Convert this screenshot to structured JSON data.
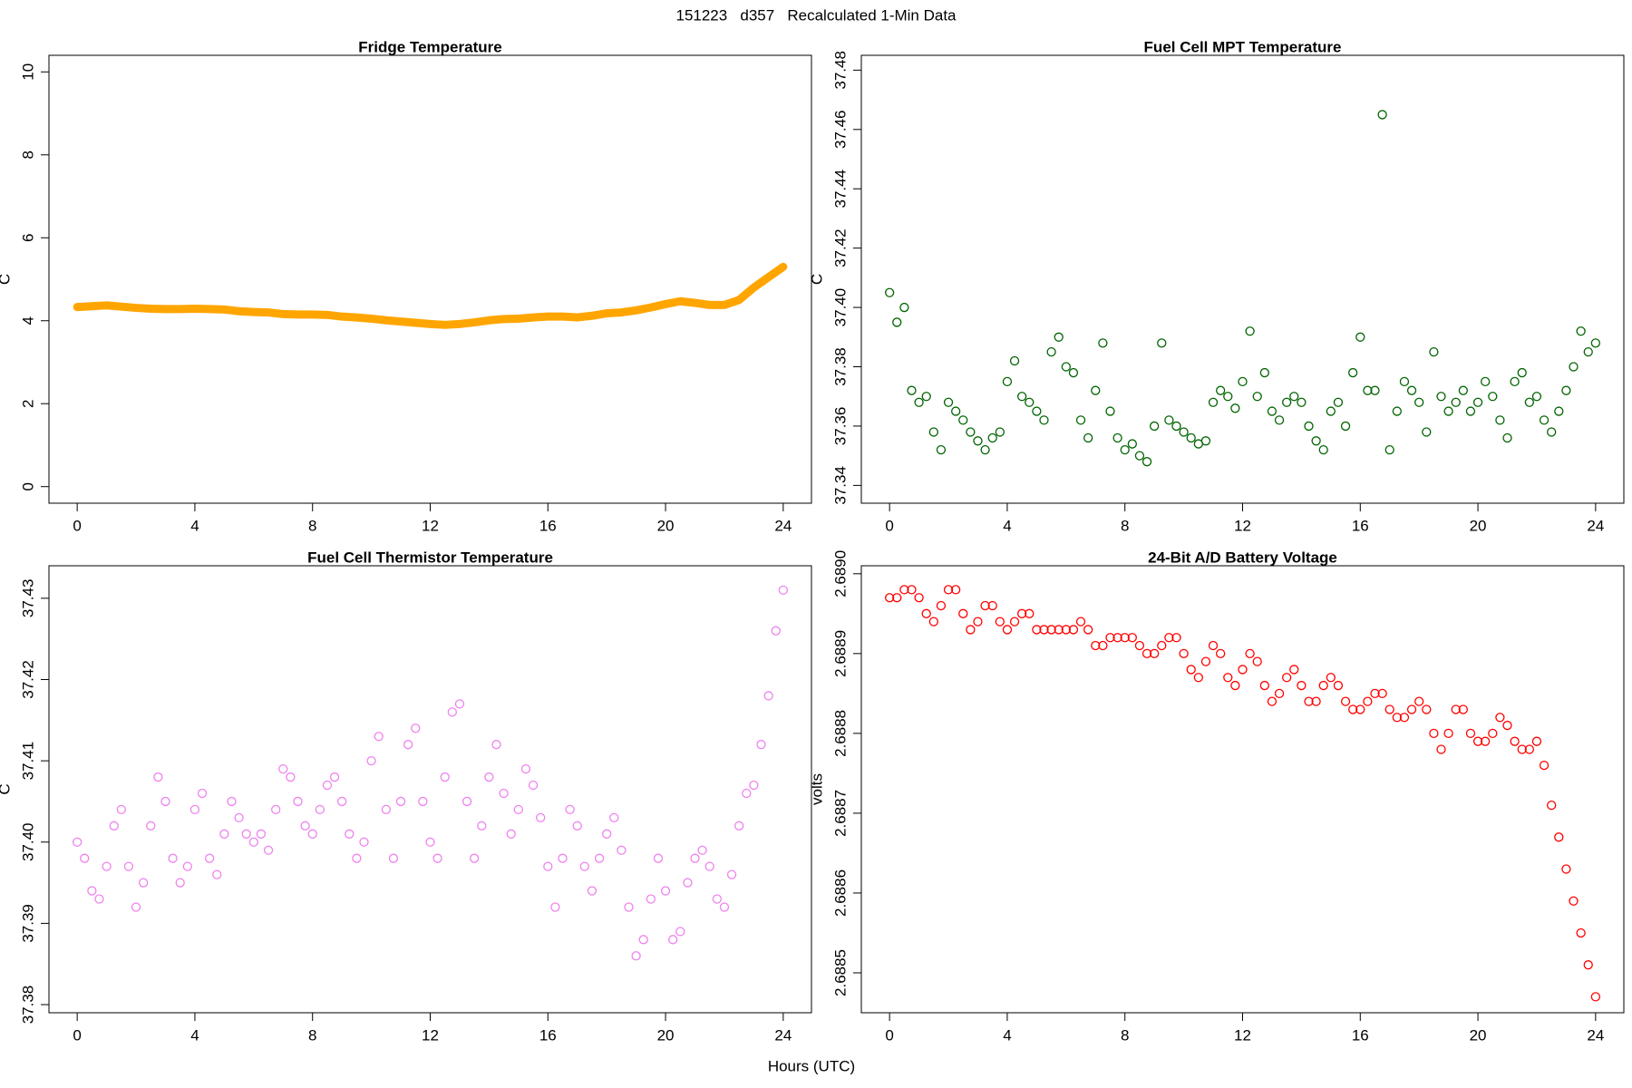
{
  "title": "151223   d357   Recalculated 1-Min Data",
  "x_label": "Hours (UTC)",
  "chart_data": [
    {
      "type": "line",
      "title": "Fridge Temperature",
      "y_label": "C",
      "color": "#ffa500",
      "x": [
        0,
        0.5,
        1,
        1.5,
        2,
        2.5,
        3,
        3.5,
        4,
        4.5,
        5,
        5.5,
        6,
        6.5,
        7,
        7.5,
        8,
        8.5,
        9,
        9.5,
        10,
        10.5,
        11,
        11.5,
        12,
        12.5,
        13,
        13.5,
        14,
        14.5,
        15,
        15.5,
        16,
        16.5,
        17,
        17.5,
        18,
        18.5,
        19,
        19.5,
        20,
        20.5,
        21,
        21.5,
        22,
        22.5,
        23,
        23.5,
        24
      ],
      "values": [
        4.33,
        4.35,
        4.37,
        4.34,
        4.31,
        4.29,
        4.28,
        4.28,
        4.29,
        4.28,
        4.27,
        4.23,
        4.21,
        4.2,
        4.16,
        4.15,
        4.15,
        4.14,
        4.1,
        4.08,
        4.05,
        4.01,
        3.98,
        3.95,
        3.92,
        3.9,
        3.92,
        3.96,
        4.01,
        4.04,
        4.05,
        4.08,
        4.1,
        4.1,
        4.08,
        4.12,
        4.18,
        4.2,
        4.25,
        4.32,
        4.4,
        4.47,
        4.43,
        4.38,
        4.38,
        4.5,
        4.8,
        5.05,
        5.3
      ],
      "xlim": [
        -0.96,
        24.96
      ],
      "xticks": [
        0,
        4,
        8,
        12,
        16,
        20,
        24
      ],
      "ylim": [
        -0.4,
        10.4
      ],
      "yticks": [
        0,
        2,
        4,
        6,
        8,
        10
      ]
    },
    {
      "type": "scatter",
      "title": "Fuel Cell MPT Temperature",
      "y_label": "C",
      "color": "#006400",
      "x": [
        0,
        0.25,
        0.5,
        0.75,
        1,
        1.25,
        1.5,
        1.75,
        2,
        2.25,
        2.5,
        2.75,
        3,
        3.25,
        3.5,
        3.75,
        4,
        4.25,
        4.5,
        4.75,
        5,
        5.25,
        5.5,
        5.75,
        6,
        6.25,
        6.5,
        6.75,
        7,
        7.25,
        7.5,
        7.75,
        8,
        8.25,
        8.5,
        8.75,
        9,
        9.25,
        9.5,
        9.75,
        10,
        10.25,
        10.5,
        10.75,
        11,
        11.25,
        11.5,
        11.75,
        12,
        12.25,
        12.5,
        12.75,
        13,
        13.25,
        13.5,
        13.75,
        14,
        14.25,
        14.5,
        14.75,
        15,
        15.25,
        15.5,
        15.75,
        16,
        16.25,
        16.5,
        16.75,
        17,
        17.25,
        17.5,
        17.75,
        18,
        18.25,
        18.5,
        18.75,
        19,
        19.25,
        19.5,
        19.75,
        20,
        20.25,
        20.5,
        20.75,
        21,
        21.25,
        21.5,
        21.75,
        22,
        22.25,
        22.5,
        22.75,
        23,
        23.25,
        23.5,
        23.75,
        24
      ],
      "values": [
        37.405,
        37.395,
        37.4,
        37.372,
        37.368,
        37.37,
        37.358,
        37.352,
        37.368,
        37.365,
        37.362,
        37.358,
        37.355,
        37.352,
        37.356,
        37.358,
        37.375,
        37.382,
        37.37,
        37.368,
        37.365,
        37.362,
        37.385,
        37.39,
        37.38,
        37.378,
        37.362,
        37.356,
        37.372,
        37.388,
        37.365,
        37.356,
        37.352,
        37.354,
        37.35,
        37.348,
        37.36,
        37.388,
        37.362,
        37.36,
        37.358,
        37.356,
        37.354,
        37.355,
        37.368,
        37.372,
        37.37,
        37.366,
        37.375,
        37.392,
        37.37,
        37.378,
        37.365,
        37.362,
        37.368,
        37.37,
        37.368,
        37.36,
        37.355,
        37.352,
        37.365,
        37.368,
        37.36,
        37.378,
        37.39,
        37.372,
        37.372,
        37.465,
        37.352,
        37.365,
        37.375,
        37.372,
        37.368,
        37.358,
        37.385,
        37.37,
        37.365,
        37.368,
        37.372,
        37.365,
        37.368,
        37.375,
        37.37,
        37.362,
        37.356,
        37.375,
        37.378,
        37.368,
        37.37,
        37.362,
        37.358,
        37.365,
        37.372,
        37.38,
        37.392,
        37.385,
        37.388
      ],
      "xlim": [
        -0.96,
        24.96
      ],
      "xticks": [
        0,
        4,
        8,
        12,
        16,
        20,
        24
      ],
      "ylim": [
        37.334,
        37.485
      ],
      "yticks": [
        37.34,
        37.36,
        37.38,
        {
          "value": 37.4,
          "label": "37.40"
        },
        37.42,
        37.44,
        37.46,
        37.48
      ]
    },
    {
      "type": "scatter",
      "title": "Fuel Cell Thermistor Temperature",
      "y_label": "C",
      "color": "#ee82ee",
      "x": [
        0,
        0.25,
        0.5,
        0.75,
        1,
        1.25,
        1.5,
        1.75,
        2,
        2.25,
        2.5,
        2.75,
        3,
        3.25,
        3.5,
        3.75,
        4,
        4.25,
        4.5,
        4.75,
        5,
        5.25,
        5.5,
        5.75,
        6,
        6.25,
        6.5,
        6.75,
        7,
        7.25,
        7.5,
        7.75,
        8,
        8.25,
        8.5,
        8.75,
        9,
        9.25,
        9.5,
        9.75,
        10,
        10.25,
        10.5,
        10.75,
        11,
        11.25,
        11.5,
        11.75,
        12,
        12.25,
        12.5,
        12.75,
        13,
        13.25,
        13.5,
        13.75,
        14,
        14.25,
        14.5,
        14.75,
        15,
        15.25,
        15.5,
        15.75,
        16,
        16.25,
        16.5,
        16.75,
        17,
        17.25,
        17.5,
        17.75,
        18,
        18.25,
        18.5,
        18.75,
        19,
        19.25,
        19.5,
        19.75,
        20,
        20.25,
        20.5,
        20.75,
        21,
        21.25,
        21.5,
        21.75,
        22,
        22.25,
        22.5,
        22.75,
        23,
        23.25,
        23.5,
        23.75,
        24
      ],
      "values": [
        37.4,
        37.398,
        37.394,
        37.393,
        37.397,
        37.402,
        37.404,
        37.397,
        37.392,
        37.395,
        37.402,
        37.408,
        37.405,
        37.398,
        37.395,
        37.397,
        37.404,
        37.406,
        37.398,
        37.396,
        37.401,
        37.405,
        37.403,
        37.401,
        37.4,
        37.401,
        37.399,
        37.404,
        37.409,
        37.408,
        37.405,
        37.402,
        37.401,
        37.404,
        37.407,
        37.408,
        37.405,
        37.401,
        37.398,
        37.4,
        37.41,
        37.413,
        37.404,
        37.398,
        37.405,
        37.412,
        37.414,
        37.405,
        37.4,
        37.398,
        37.408,
        37.416,
        37.417,
        37.405,
        37.398,
        37.402,
        37.408,
        37.412,
        37.406,
        37.401,
        37.404,
        37.409,
        37.407,
        37.403,
        37.397,
        37.392,
        37.398,
        37.404,
        37.402,
        37.397,
        37.394,
        37.398,
        37.401,
        37.403,
        37.399,
        37.392,
        37.386,
        37.388,
        37.393,
        37.398,
        37.394,
        37.388,
        37.389,
        37.395,
        37.398,
        37.399,
        37.397,
        37.393,
        37.392,
        37.396,
        37.402,
        37.406,
        37.407,
        37.412,
        37.418,
        37.426,
        37.431
      ],
      "xlim": [
        -0.96,
        24.96
      ],
      "xticks": [
        0,
        4,
        8,
        12,
        16,
        20,
        24
      ],
      "ylim": [
        37.379,
        37.434
      ],
      "yticks": [
        37.38,
        37.39,
        {
          "value": 37.4,
          "label": "37.40"
        },
        37.41,
        37.42,
        37.43
      ]
    },
    {
      "type": "scatter",
      "title": "24-Bit A/D Battery Voltage",
      "y_label": "volts",
      "color": "#ff0000",
      "x": [
        0,
        0.25,
        0.5,
        0.75,
        1,
        1.25,
        1.5,
        1.75,
        2,
        2.25,
        2.5,
        2.75,
        3,
        3.25,
        3.5,
        3.75,
        4,
        4.25,
        4.5,
        4.75,
        5,
        5.25,
        5.5,
        5.75,
        6,
        6.25,
        6.5,
        6.75,
        7,
        7.25,
        7.5,
        7.75,
        8,
        8.25,
        8.5,
        8.75,
        9,
        9.25,
        9.5,
        9.75,
        10,
        10.25,
        10.5,
        10.75,
        11,
        11.25,
        11.5,
        11.75,
        12,
        12.25,
        12.5,
        12.75,
        13,
        13.25,
        13.5,
        13.75,
        14,
        14.25,
        14.5,
        14.75,
        15,
        15.25,
        15.5,
        15.75,
        16,
        16.25,
        16.5,
        16.75,
        17,
        17.25,
        17.5,
        17.75,
        18,
        18.25,
        18.5,
        18.75,
        19,
        19.25,
        19.5,
        19.75,
        20,
        20.25,
        20.5,
        20.75,
        21,
        21.25,
        21.5,
        21.75,
        22,
        22.25,
        22.5,
        22.75,
        23,
        23.25,
        23.5,
        23.75,
        24
      ],
      "values": [
        2.68897,
        2.68897,
        2.68898,
        2.68898,
        2.68897,
        2.68895,
        2.68894,
        2.68896,
        2.68898,
        2.68898,
        2.68895,
        2.68893,
        2.68894,
        2.68896,
        2.68896,
        2.68894,
        2.68893,
        2.68894,
        2.68895,
        2.68895,
        2.68893,
        2.68893,
        2.68893,
        2.68893,
        2.68893,
        2.68893,
        2.68894,
        2.68893,
        2.68891,
        2.68891,
        2.68892,
        2.68892,
        2.68892,
        2.68892,
        2.68891,
        2.6889,
        2.6889,
        2.68891,
        2.68892,
        2.68892,
        2.6889,
        2.68888,
        2.68887,
        2.68889,
        2.68891,
        2.6889,
        2.68887,
        2.68886,
        2.68888,
        2.6889,
        2.68889,
        2.68886,
        2.68884,
        2.68885,
        2.68887,
        2.68888,
        2.68886,
        2.68884,
        2.68884,
        2.68886,
        2.68887,
        2.68886,
        2.68884,
        2.68883,
        2.68883,
        2.68884,
        2.68885,
        2.68885,
        2.68883,
        2.68882,
        2.68882,
        2.68883,
        2.68884,
        2.68883,
        2.6888,
        2.68878,
        2.6888,
        2.68883,
        2.68883,
        2.6888,
        2.68879,
        2.68879,
        2.6888,
        2.68882,
        2.68881,
        2.68879,
        2.68878,
        2.68878,
        2.68879,
        2.68876,
        2.68871,
        2.68867,
        2.68863,
        2.68859,
        2.68855,
        2.68851,
        2.68847
      ],
      "xlim": [
        -0.96,
        24.96
      ],
      "xticks": [
        0,
        4,
        8,
        12,
        16,
        20,
        24
      ],
      "ylim": [
        2.68845,
        2.68901
      ],
      "yticks": [
        {
          "value": 2.6885,
          "label": "2.6885"
        },
        {
          "value": 2.6886,
          "label": "2.6886"
        },
        {
          "value": 2.6887,
          "label": "2.6887"
        },
        {
          "value": 2.6888,
          "label": "2.6888"
        },
        {
          "value": 2.6889,
          "label": "2.6889"
        },
        {
          "value": 2.689,
          "label": "2.6890"
        }
      ]
    }
  ]
}
